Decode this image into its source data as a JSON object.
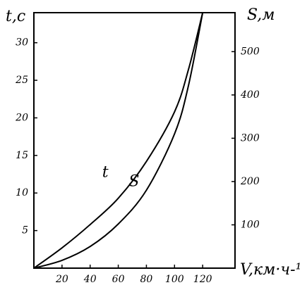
{
  "chart_data": {
    "type": "line",
    "ylabel": "t,c",
    "y2label": "S,м",
    "xlabel": "V,км·ч-¹",
    "x": [
      0,
      20,
      40,
      60,
      80,
      100,
      110,
      120
    ],
    "series": [
      {
        "name": "t",
        "color": "#000000",
        "values": [
          0,
          2.7,
          5.8,
          9.3,
          14.2,
          20.8,
          26.5,
          34
        ]
      },
      {
        "name": "S",
        "color": "#000000",
        "axis": "y2",
        "values": [
          0,
          18,
          50,
          102,
          180,
          310,
          423,
          590
        ]
      }
    ],
    "xlim": [
      0,
      143
    ],
    "xticks": [
      20,
      40,
      60,
      80,
      100,
      120
    ],
    "ylim": [
      0,
      34
    ],
    "yticks": [
      5,
      10,
      15,
      20,
      25,
      30
    ],
    "y2lim": [
      0,
      590
    ],
    "y2ticks": [
      100,
      200,
      300,
      400,
      500
    ],
    "grid": false
  }
}
